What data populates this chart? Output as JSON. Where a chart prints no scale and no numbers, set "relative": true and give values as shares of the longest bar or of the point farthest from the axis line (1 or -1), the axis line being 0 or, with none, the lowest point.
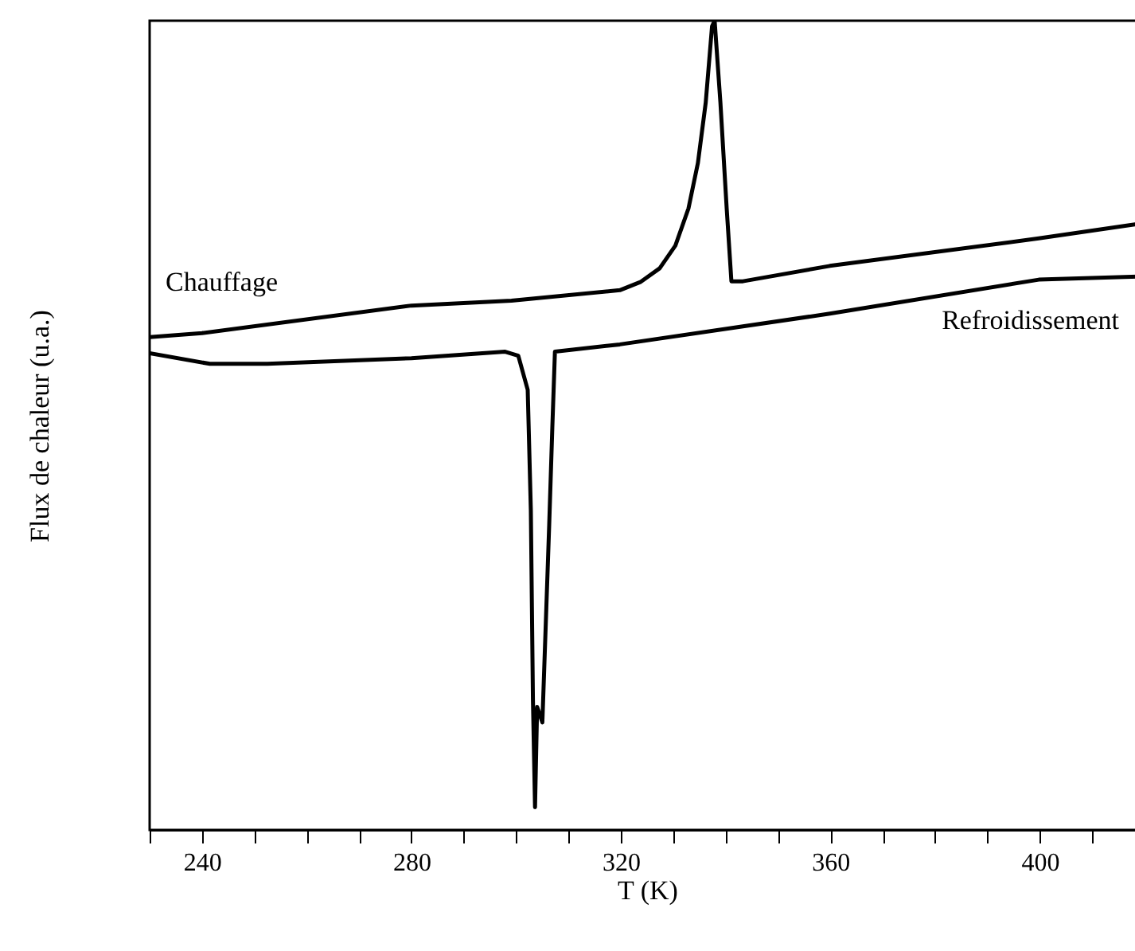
{
  "chart_data": {
    "type": "line",
    "relative": true,
    "xlabel": "T (K)",
    "ylabel": "Flux de chaleur (u.a.)",
    "xlim": [
      230,
      420
    ],
    "xticks": [
      {
        "value": 230,
        "label": null
      },
      240,
      {
        "value": 250,
        "label": null
      },
      {
        "value": 260,
        "label": null
      },
      {
        "value": 270,
        "label": null
      },
      280,
      {
        "value": 290,
        "label": null
      },
      {
        "value": 300,
        "label": null
      },
      {
        "value": 310,
        "label": null
      },
      320,
      {
        "value": 330,
        "label": null
      },
      {
        "value": 340,
        "label": null
      },
      {
        "value": 350,
        "label": null
      },
      360,
      {
        "value": 370,
        "label": null
      },
      {
        "value": 380,
        "label": null
      },
      {
        "value": 390,
        "label": null
      },
      400,
      {
        "value": 410,
        "label": null
      }
    ],
    "grid": false,
    "line_style": "solid",
    "marker": "none",
    "series": [
      {
        "name": "Chauffage",
        "color": "#000000",
        "x": [
          230,
          240,
          280,
          299.1,
          319.8,
          323.7,
          327.4,
          330.4,
          332.9,
          334.7,
          336.2,
          337.4,
          337.9,
          339.0,
          340.2,
          341.1,
          343.3,
          359.9,
          399.8,
          420
        ],
        "values": [
          0.609,
          0.614,
          0.648,
          0.654,
          0.667,
          0.677,
          0.694,
          0.722,
          0.768,
          0.824,
          0.899,
          0.993,
          1.0,
          0.899,
          0.768,
          0.678,
          0.678,
          0.697,
          0.731,
          0.75
        ]
      },
      {
        "name": "Refroidissement",
        "color": "#000000",
        "x": [
          230,
          241.5,
          252.5,
          280,
          297.9,
          300.4,
          302.2,
          302.8,
          303.2,
          303.6,
          304.0,
          305.0,
          306.3,
          306.9,
          307.4,
          319.8,
          359.9,
          399.8,
          420
        ],
        "values": [
          0.589,
          0.576,
          0.576,
          0.583,
          0.591,
          0.586,
          0.544,
          0.395,
          0.161,
          0.028,
          0.152,
          0.133,
          0.376,
          0.497,
          0.591,
          0.6,
          0.638,
          0.68,
          0.684
        ]
      }
    ]
  }
}
